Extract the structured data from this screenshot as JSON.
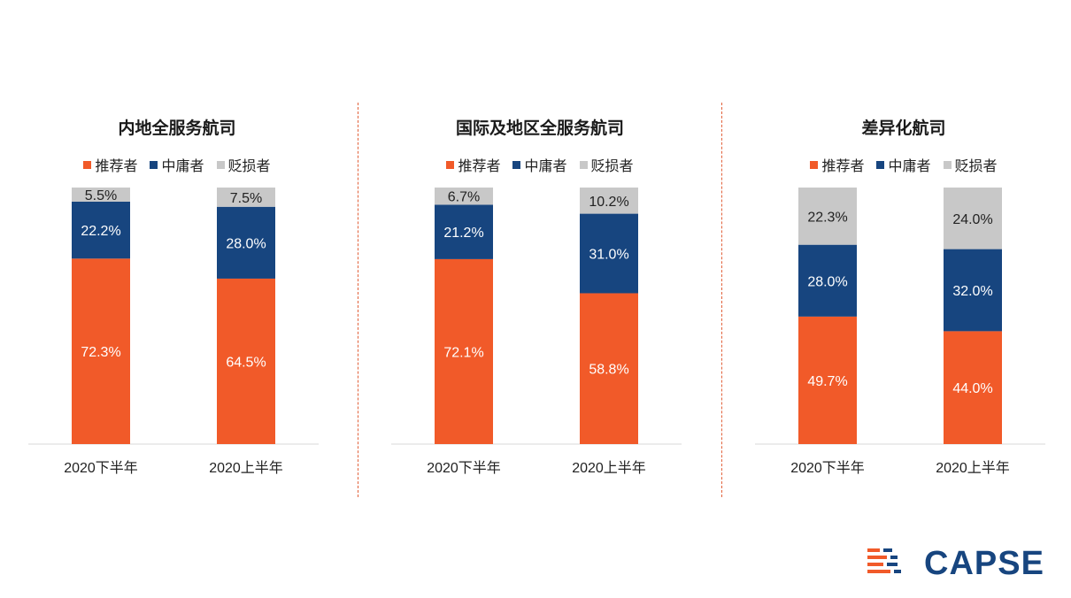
{
  "colors": {
    "recommender": "#f15a29",
    "neutral": "#17457f",
    "detractor": "#c8c8c8",
    "divider": "#e2613a"
  },
  "legend": [
    "推荐者",
    "中庸者",
    "贬损者"
  ],
  "categories": [
    "2020下半年",
    "2020上半年"
  ],
  "panels": [
    {
      "title": "内地全服务航司"
    },
    {
      "title": "国际及地区全服务航司"
    },
    {
      "title": "差异化航司"
    }
  ],
  "logo": {
    "text": "CAPSE"
  },
  "chart_data": [
    {
      "type": "bar",
      "stacked": true,
      "title": "内地全服务航司",
      "categories": [
        "2020下半年",
        "2020上半年"
      ],
      "series": [
        {
          "name": "推荐者",
          "values": [
            72.3,
            64.5
          ],
          "labels": [
            "72.3%",
            "64.5%"
          ]
        },
        {
          "name": "中庸者",
          "values": [
            22.2,
            28.0
          ],
          "labels": [
            "22.2%",
            "28.0%"
          ]
        },
        {
          "name": "贬损者",
          "values": [
            5.5,
            7.5
          ],
          "labels": [
            "5.5%",
            "7.5%"
          ]
        }
      ],
      "ylim": [
        0,
        100
      ],
      "legend_position": "top"
    },
    {
      "type": "bar",
      "stacked": true,
      "title": "国际及地区全服务航司",
      "categories": [
        "2020下半年",
        "2020上半年"
      ],
      "series": [
        {
          "name": "推荐者",
          "values": [
            72.1,
            58.8
          ],
          "labels": [
            "72.1%",
            "58.8%"
          ]
        },
        {
          "name": "中庸者",
          "values": [
            21.2,
            31.0
          ],
          "labels": [
            "21.2%",
            "31.0%"
          ]
        },
        {
          "name": "贬损者",
          "values": [
            6.7,
            10.2
          ],
          "labels": [
            "6.7%",
            "10.2%"
          ]
        }
      ],
      "ylim": [
        0,
        100
      ],
      "legend_position": "top"
    },
    {
      "type": "bar",
      "stacked": true,
      "title": "差异化航司",
      "categories": [
        "2020下半年",
        "2020上半年"
      ],
      "series": [
        {
          "name": "推荐者",
          "values": [
            49.7,
            44.0
          ],
          "labels": [
            "49.7%",
            "44.0%"
          ]
        },
        {
          "name": "中庸者",
          "values": [
            28.0,
            32.0
          ],
          "labels": [
            "28.0%",
            "32.0%"
          ]
        },
        {
          "name": "贬损者",
          "values": [
            22.3,
            24.0
          ],
          "labels": [
            "22.3%",
            "24.0%"
          ]
        }
      ],
      "ylim": [
        0,
        100
      ],
      "legend_position": "top"
    }
  ]
}
